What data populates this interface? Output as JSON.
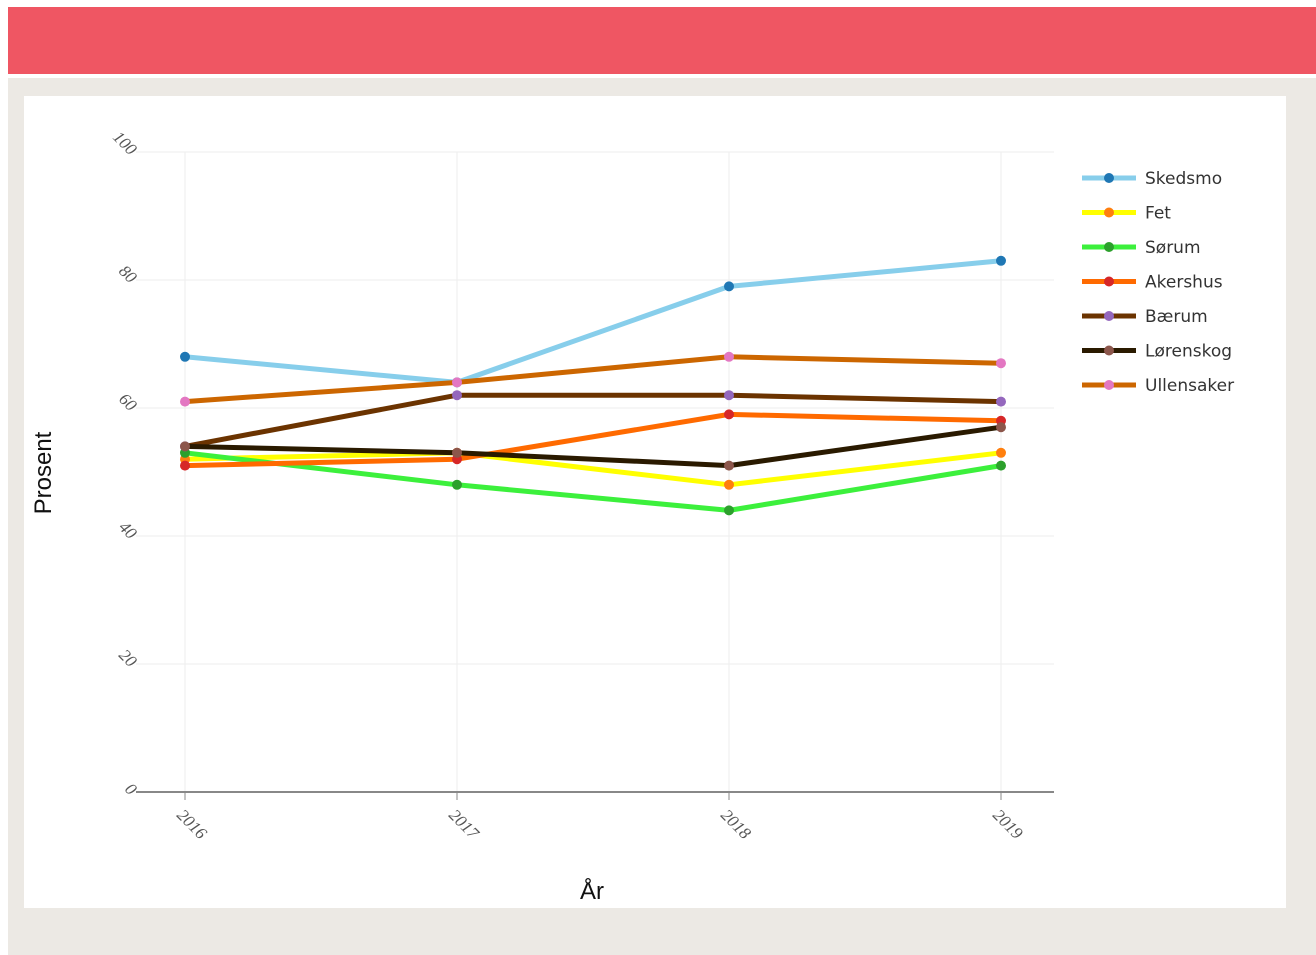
{
  "page": {
    "top_strip_text": "",
    "header_color": "#ef5663",
    "panel_color": "#ece9e4"
  },
  "chart_data": {
    "type": "line",
    "title": "",
    "xlabel": "År",
    "ylabel": "Prosent",
    "categories": [
      "2016",
      "2017",
      "2018",
      "2019"
    ],
    "ylim": [
      0,
      100
    ],
    "yticks": [
      "0",
      "20",
      "40",
      "60",
      "80",
      "100"
    ],
    "grid": true,
    "legend_position": "right",
    "series": [
      {
        "name": "Skedsmo",
        "line_color": "#87ceeb",
        "marker_color": "#1f77b4",
        "values": [
          68,
          64,
          79,
          83
        ]
      },
      {
        "name": "Fet",
        "line_color": "#ffff00",
        "marker_color": "#ff7f0e",
        "values": [
          52,
          53,
          48,
          53
        ]
      },
      {
        "name": "Sørum",
        "line_color": "#3cf03c",
        "marker_color": "#2ca02c",
        "values": [
          53,
          48,
          44,
          51
        ]
      },
      {
        "name": "Akershus",
        "line_color": "#ff6a00",
        "marker_color": "#d62728",
        "values": [
          51,
          52,
          59,
          58
        ]
      },
      {
        "name": "Bærum",
        "line_color": "#6b3300",
        "marker_color": "#9467bd",
        "values": [
          54,
          62,
          62,
          61
        ]
      },
      {
        "name": "Lørenskog",
        "line_color": "#2a1a00",
        "marker_color": "#8c564b",
        "values": [
          54,
          53,
          51,
          57
        ]
      },
      {
        "name": "Ullensaker",
        "line_color": "#cc6600",
        "marker_color": "#e377c2",
        "values": [
          61,
          64,
          68,
          67
        ]
      }
    ]
  }
}
